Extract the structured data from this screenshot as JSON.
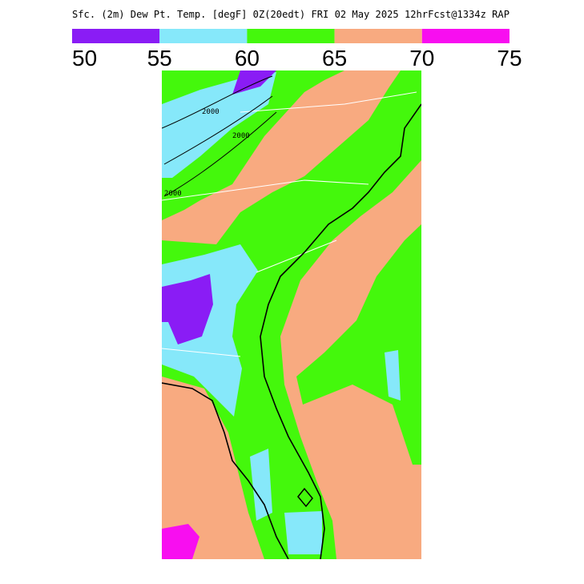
{
  "header": {
    "title": "Sfc. (2m) Dew Pt. Temp. [degF] 0Z(20edt) FRI 02 May 2025 12hrFcst@1334z RAP"
  },
  "legend": {
    "labels": [
      "50",
      "55",
      "60",
      "65",
      "70",
      "75"
    ],
    "colors": [
      "#8a1cf5",
      "#86e8fa",
      "#44f80c",
      "#f8aa80",
      "#f80ef0"
    ]
  },
  "map": {
    "contour_labels": [
      "2000",
      "2000",
      "2000"
    ]
  }
}
